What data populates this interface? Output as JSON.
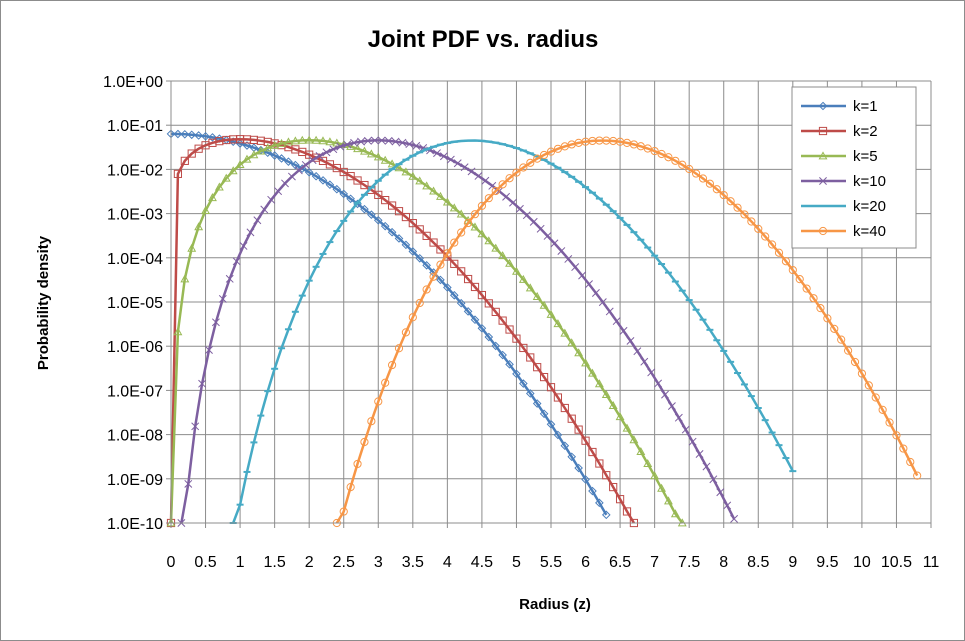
{
  "chart_data": {
    "type": "line",
    "title": "Joint PDF vs. radius",
    "xlabel": "Radius (z)",
    "ylabel": "Probability density",
    "xlim": [
      0,
      11
    ],
    "ylim": [
      1e-10,
      1
    ],
    "yscale": "log",
    "x_ticks": [
      "0",
      "0.5",
      "1",
      "1.5",
      "2",
      "2.5",
      "3",
      "3.5",
      "4",
      "4.5",
      "5",
      "5.5",
      "6",
      "6.5",
      "7",
      "7.5",
      "8",
      "8.5",
      "9",
      "9.5",
      "10",
      "10.5",
      "11"
    ],
    "y_ticks": [
      "1.0E+00",
      "1.0E-01",
      "1.0E-02",
      "1.0E-03",
      "1.0E-04",
      "1.0E-05",
      "1.0E-06",
      "1.0E-07",
      "1.0E-08",
      "1.0E-09",
      "1.0E-10"
    ],
    "grid": true,
    "legend_position": "top-right",
    "series": [
      {
        "name": "k=1",
        "k": 1,
        "color": "#4a7ebb",
        "marker": "diamond",
        "x_start": 0.0,
        "x_end": 6.3,
        "x_step": 0.1
      },
      {
        "name": "k=2",
        "k": 2,
        "color": "#be4b48",
        "marker": "square",
        "x_start": 0.0,
        "x_end": 6.7,
        "x_step": 0.1
      },
      {
        "name": "k=5",
        "k": 5,
        "color": "#98b954",
        "marker": "triangle",
        "x_start": 0.0,
        "x_end": 7.4,
        "x_step": 0.1
      },
      {
        "name": "k=10",
        "k": 10,
        "color": "#7d5fa0",
        "marker": "x",
        "x_start": 0.15,
        "x_end": 8.15,
        "x_step": 0.1
      },
      {
        "name": "k=20",
        "k": 20,
        "color": "#46aac5",
        "marker": "dash",
        "x_start": 0.9,
        "x_end": 9.0,
        "x_step": 0.1
      },
      {
        "name": "k=40",
        "k": 40,
        "color": "#f79646",
        "marker": "circle",
        "x_start": 2.4,
        "x_end": 10.8,
        "x_step": 0.1
      }
    ]
  }
}
